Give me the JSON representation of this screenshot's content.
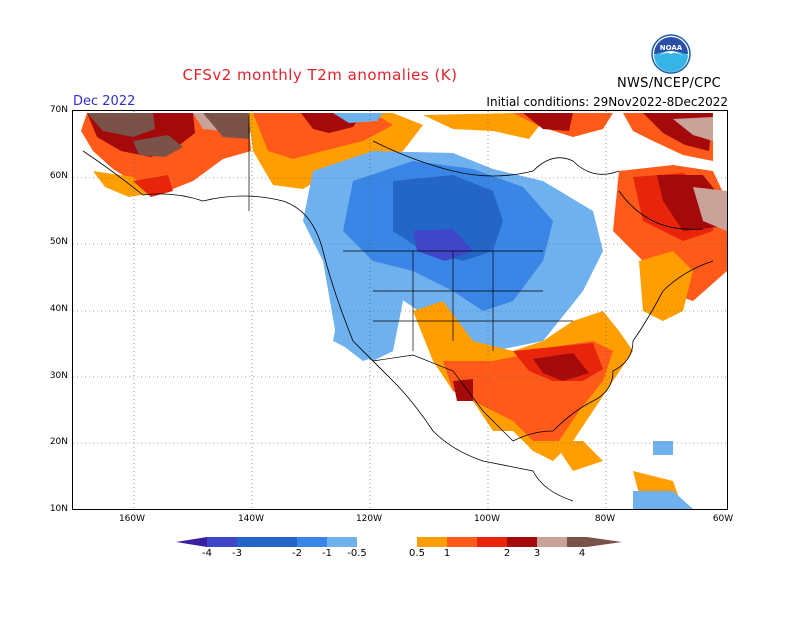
{
  "header": {
    "title": "CFSv2 monthly T2m anomalies (K)",
    "month": "Dec 2022",
    "initial_conditions": "Initial conditions: 29Nov2022-8Dec2022",
    "agency": "NWS/NCEP/CPC",
    "logo_text": "NOAA"
  },
  "axes": {
    "lat_labels": [
      "70N",
      "60N",
      "50N",
      "40N",
      "30N",
      "20N",
      "10N"
    ],
    "lon_labels": [
      "160W",
      "140W",
      "120W",
      "100W",
      "80W",
      "60W"
    ]
  },
  "colorbar": {
    "tick_labels": [
      "-4",
      "-3",
      "-2",
      "-1",
      "-0.5",
      "0.5",
      "1",
      "2",
      "3",
      "4"
    ],
    "colors": [
      "#3a1fa3",
      "#3f46c9",
      "#2466c8",
      "#3a86e6",
      "#6fb0ee",
      "#ffffff",
      "#ff9e00",
      "#ff5a19",
      "#e8240b",
      "#a50a0a",
      "#c9a29a",
      "#7a5249"
    ]
  }
}
